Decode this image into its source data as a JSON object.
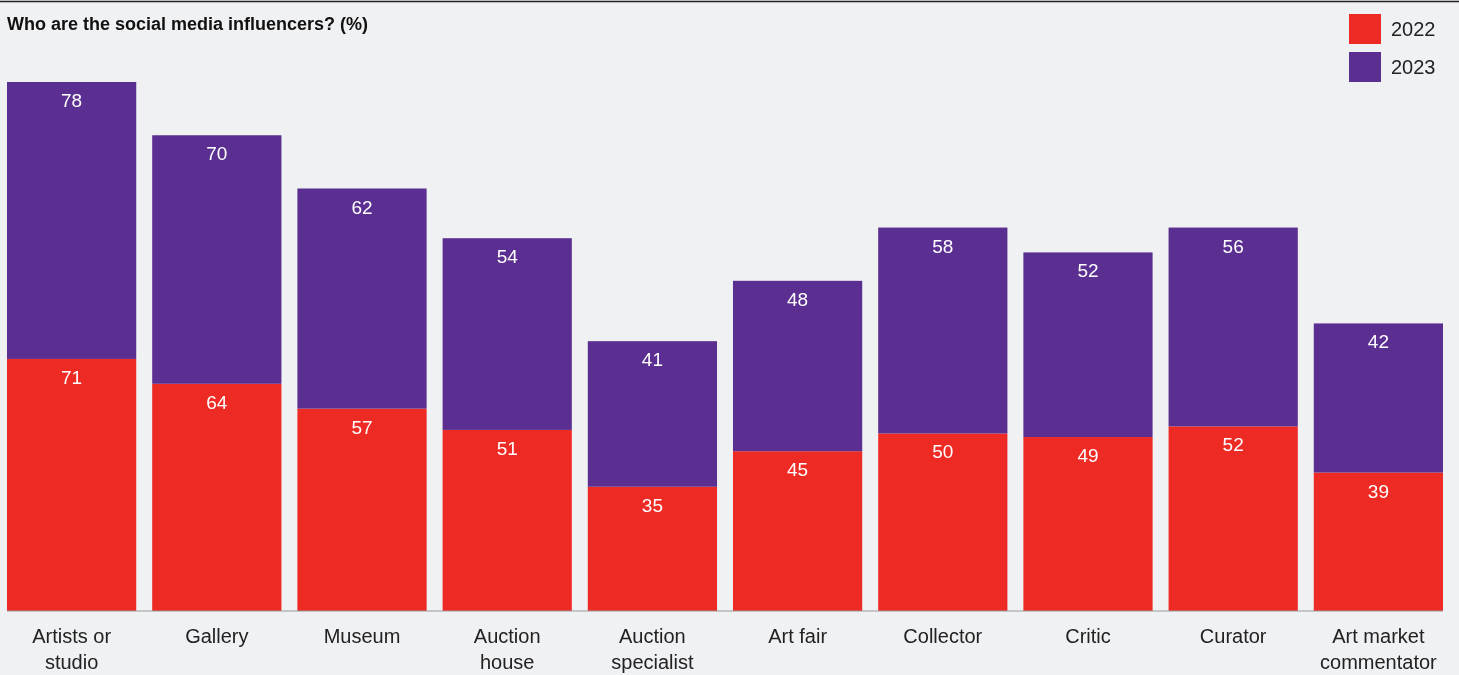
{
  "chart_data": {
    "type": "bar",
    "title": "Who are the social media influencers? (%)",
    "stacked": true,
    "data_labels": true,
    "legend": "top right",
    "categories": [
      "Artists or studio",
      "Gallery",
      "Museum",
      "Auction house",
      "Auction specialist",
      "Art fair",
      "Collector",
      "Critic",
      "Curator",
      "Art market commentator"
    ],
    "series": [
      {
        "name": "2022",
        "color": "#ee2a24",
        "values": [
          71,
          64,
          57,
          51,
          35,
          45,
          50,
          49,
          52,
          39
        ]
      },
      {
        "name": "2023",
        "color": "#5b2e91",
        "values": [
          78,
          70,
          62,
          54,
          41,
          48,
          58,
          52,
          56,
          42
        ]
      }
    ]
  }
}
